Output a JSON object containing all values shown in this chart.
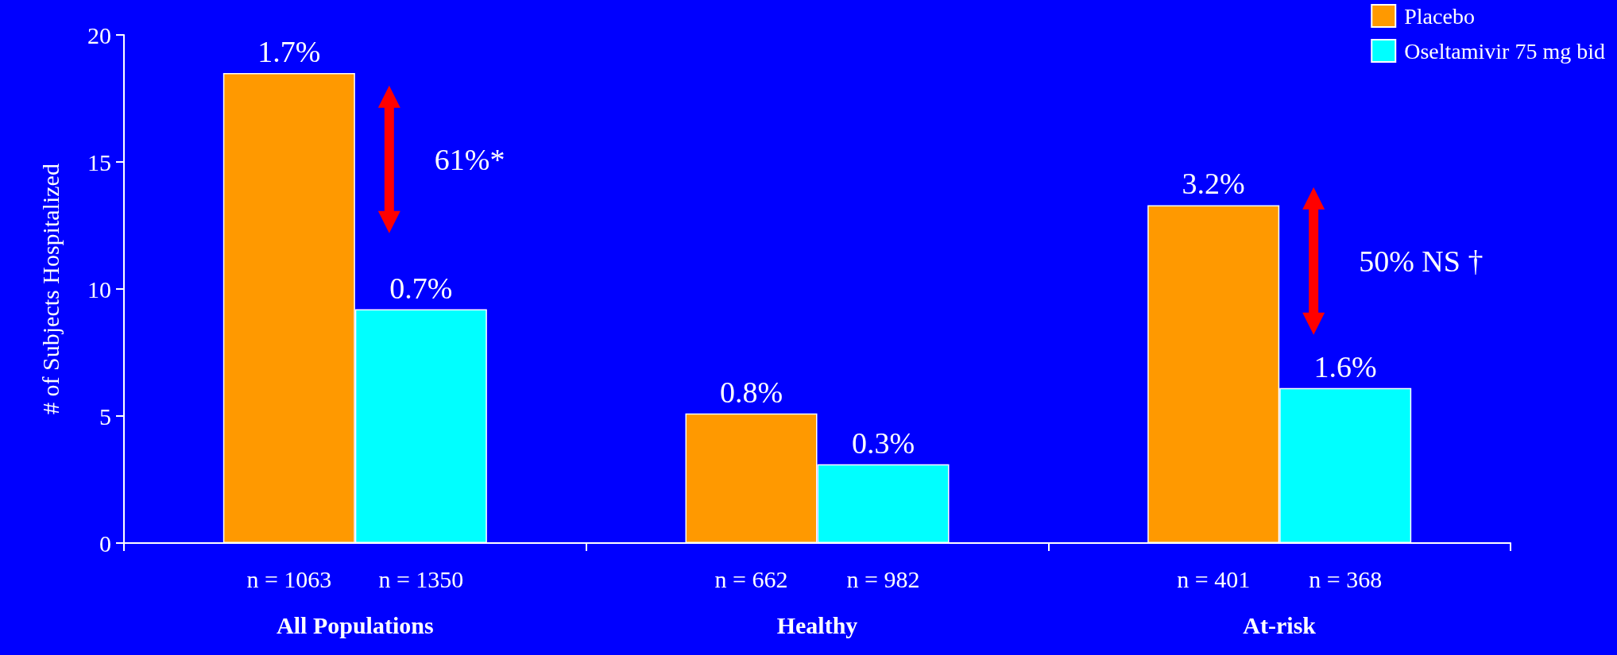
{
  "chart_data": {
    "type": "bar",
    "ylabel": "# of Subjects Hospitalized",
    "categories": [
      "All Populations",
      "Healthy",
      "At-risk"
    ],
    "series": [
      {
        "name": "Placebo",
        "color": "#ff9900",
        "values": [
          18.5,
          5.1,
          13.3
        ]
      },
      {
        "name": "Oseltamivir 75 mg bid",
        "color": "#00ffff",
        "values": [
          9.2,
          3.1,
          6.1
        ]
      }
    ],
    "annotations": [
      {
        "text": "1.7%",
        "x": "All Populations",
        "y": 18.5
      },
      {
        "text": "0.7%",
        "x": "All Populations",
        "y": 9.2
      },
      {
        "text": "0.8%",
        "x": "Healthy",
        "y": 5.1
      },
      {
        "text": "0.3%",
        "x": "Healthy",
        "y": 3.1
      },
      {
        "text": "3.2%",
        "x": "At-risk",
        "y": 13.3
      },
      {
        "text": "1.6%",
        "x": "At-risk",
        "y": 6.1
      },
      {
        "text": "61%*",
        "x": "All Populations",
        "y": 15.1
      },
      {
        "text": "50% NS †",
        "x": "At-risk",
        "y": 11.1
      },
      "n = 1063",
      "n = 1350",
      "n = 662",
      "n = 982",
      "n = 401",
      "n = 368"
    ],
    "ylim": [
      0,
      20
    ],
    "yticks": [
      0,
      5,
      10,
      15,
      20
    ],
    "grid": false,
    "legend": "top right"
  }
}
